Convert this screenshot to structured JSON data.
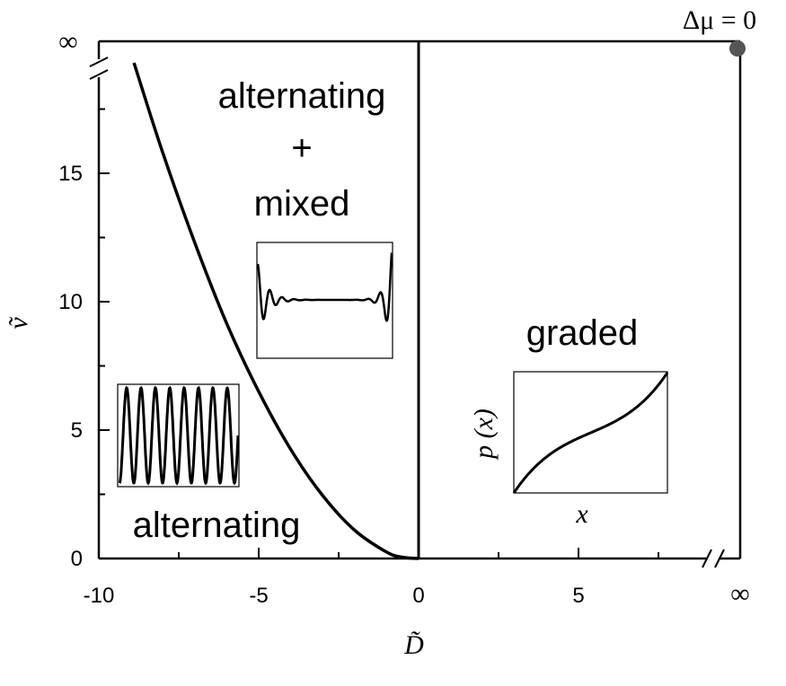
{
  "chart_data": {
    "type": "line",
    "title": "",
    "xlabel": "D̃",
    "ylabel": "ṽ",
    "xlim": [
      -10,
      10
    ],
    "ylim": [
      0,
      20
    ],
    "x_ticks": [
      -10,
      -5,
      0,
      5
    ],
    "x_tick_labels": [
      "-10",
      "-5",
      "0",
      "5"
    ],
    "x_infinity_label": "∞",
    "y_ticks": [
      0,
      5,
      10,
      15
    ],
    "y_tick_labels": [
      "0",
      "5",
      "10",
      "15"
    ],
    "y_infinity_label": "∞",
    "grid": false,
    "series": [
      {
        "x": [
          -8.9,
          -8,
          -7,
          -6,
          -5,
          -4,
          -3,
          -2,
          -1,
          -0.5,
          0
        ],
        "y": [
          19.3,
          15.8,
          12.3,
          9.15,
          6.5,
          4.25,
          2.45,
          1.1,
          0.25,
          0.05,
          0
        ]
      }
    ],
    "boundary_x": 0,
    "point_label": "Δμ = 0",
    "regions": {
      "upper_left": [
        "alternating",
        "+",
        "mixed"
      ],
      "lower_left": "alternating",
      "right": "graded"
    },
    "inset_axes": {
      "xlabel": "x",
      "ylabel": "p (x)"
    }
  }
}
